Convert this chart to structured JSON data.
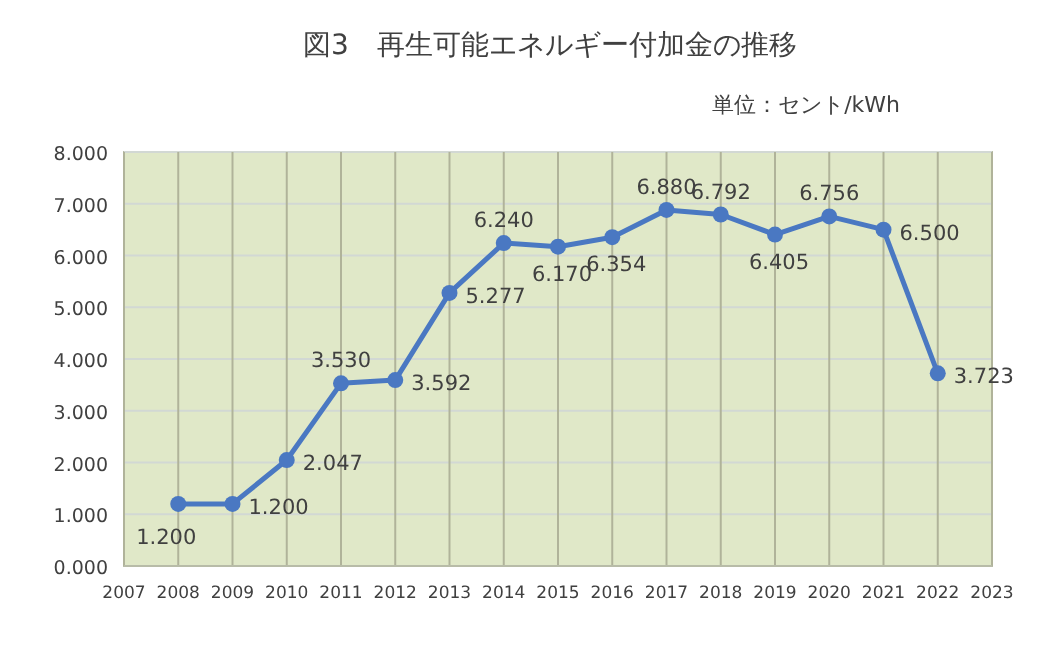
{
  "chart_data": {
    "type": "line",
    "title": "図3　再生可能エネルギー付加金の推移",
    "annotations": [
      "単位：セント/kWh"
    ],
    "x": [
      2008,
      2009,
      2010,
      2011,
      2012,
      2013,
      2014,
      2015,
      2016,
      2017,
      2018,
      2019,
      2020,
      2021,
      2022
    ],
    "series": [
      {
        "color": "#4a78c2",
        "values": [
          1.2,
          1.2,
          2.047,
          3.53,
          3.592,
          5.277,
          6.24,
          6.17,
          6.354,
          6.88,
          6.792,
          6.405,
          6.756,
          6.5,
          3.723
        ],
        "value_labels": [
          "1.200",
          "1.200",
          "2.047",
          "3.530",
          "3.592",
          "5.277",
          "6.240",
          "6.170",
          "6.354",
          "6.880",
          "6.792",
          "6.405",
          "6.756",
          "6.500",
          "3.723"
        ]
      }
    ],
    "xlim": [
      2007,
      2023
    ],
    "xticks": [
      2007,
      2008,
      2009,
      2010,
      2011,
      2012,
      2013,
      2014,
      2015,
      2016,
      2017,
      2018,
      2019,
      2020,
      2021,
      2022,
      2023
    ],
    "ylim": [
      0,
      8
    ],
    "yticks": [
      {
        "value": 0,
        "label": "0.000"
      },
      {
        "value": 1,
        "label": "1.000"
      },
      {
        "value": 2,
        "label": "2.000"
      },
      {
        "value": 3,
        "label": "3.000"
      },
      {
        "value": 4,
        "label": "4.000"
      },
      {
        "value": 5,
        "label": "5.000"
      },
      {
        "value": 6,
        "label": "6.000"
      },
      {
        "value": 7,
        "label": "7.000"
      },
      {
        "value": 8,
        "label": "8.000"
      }
    ],
    "grid": true,
    "marker": "circle",
    "line_style": "solid"
  }
}
